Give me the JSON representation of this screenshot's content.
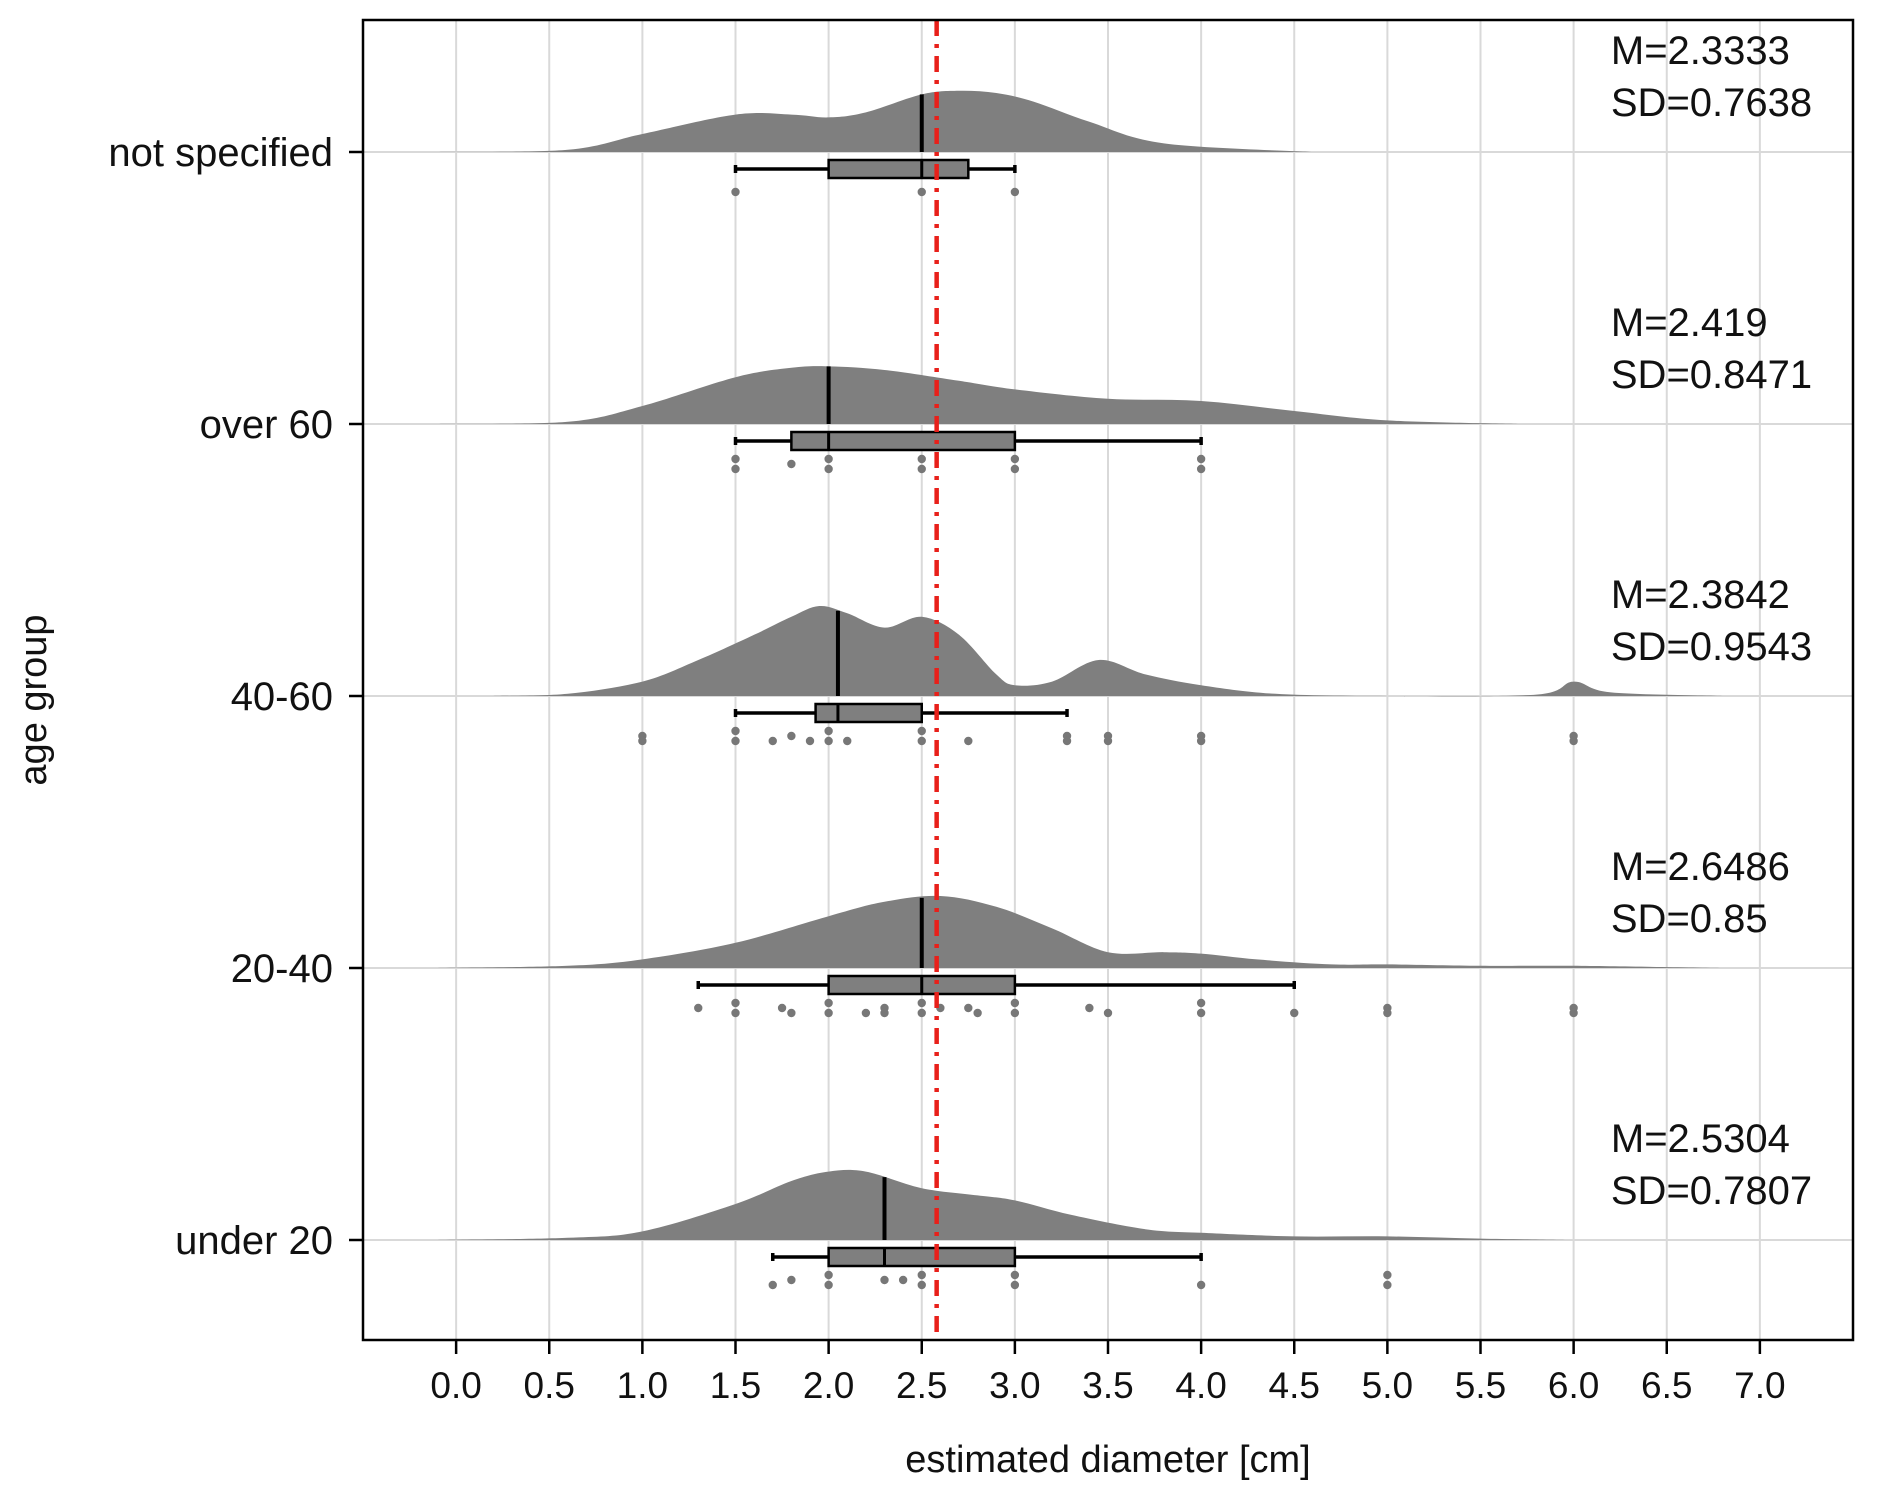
{
  "chart_data": {
    "type": "raincloud",
    "title": "",
    "xlabel": "estimated diameter [cm]",
    "ylabel": "age group",
    "xlim": [
      -0.5,
      7.5
    ],
    "xticks": [
      0.0,
      0.5,
      1.0,
      1.5,
      2.0,
      2.5,
      3.0,
      3.5,
      4.0,
      4.5,
      5.0,
      5.5,
      6.0,
      6.5,
      7.0
    ],
    "xtick_labels": [
      "0.0",
      "0.5",
      "1.0",
      "1.5",
      "2.0",
      "2.5",
      "3.0",
      "3.5",
      "4.0",
      "4.5",
      "5.0",
      "5.5",
      "6.0",
      "6.5",
      "7.0"
    ],
    "grid": true,
    "reference_line": {
      "x": 2.58,
      "style": "dash-dot",
      "color": "#e8201a"
    },
    "colors": {
      "cloud": "#7f7f7f",
      "box": "#7f7f7f",
      "points": "#777777",
      "line": "#000000",
      "grid": "#d9d9d9"
    },
    "groups": [
      {
        "name": "not specified",
        "stats": {
          "mean_label": "M=2.3333",
          "sd_label": "SD=0.7638"
        },
        "box": {
          "whisker_low": 1.5,
          "q1": 2.0,
          "median": 2.5,
          "q3": 2.75,
          "whisker_high": 3.0
        },
        "density": {
          "x": [
            -0.1,
            0.6,
            1.0,
            1.5,
            1.8,
            2.0,
            2.2,
            2.5,
            2.7,
            2.9,
            3.1,
            3.4,
            3.8,
            4.6
          ],
          "h": [
            0,
            0.03,
            0.25,
            0.52,
            0.52,
            0.48,
            0.55,
            0.8,
            0.85,
            0.82,
            0.7,
            0.42,
            0.12,
            0
          ]
        },
        "points": [
          [
            1.5,
            0
          ],
          [
            2.5,
            0
          ],
          [
            3.0,
            0
          ]
        ]
      },
      {
        "name": "over 60",
        "stats": {
          "mean_label": "M=2.419",
          "sd_label": "SD=0.8471"
        },
        "box": {
          "whisker_low": 1.5,
          "q1": 1.8,
          "median": 2.0,
          "q3": 3.0,
          "whisker_high": 4.0
        },
        "density": {
          "x": [
            -0.1,
            0.6,
            1.0,
            1.5,
            1.8,
            2.0,
            2.3,
            2.7,
            3.0,
            3.5,
            4.0,
            4.5,
            5.0,
            5.7
          ],
          "h": [
            0,
            0.03,
            0.25,
            0.65,
            0.78,
            0.8,
            0.75,
            0.6,
            0.48,
            0.35,
            0.32,
            0.18,
            0.05,
            0
          ]
        },
        "points": [
          [
            1.5,
            -1
          ],
          [
            1.5,
            1
          ],
          [
            1.8,
            0
          ],
          [
            2.0,
            -1
          ],
          [
            2.0,
            1
          ],
          [
            2.5,
            -1
          ],
          [
            2.5,
            1
          ],
          [
            3.0,
            -1
          ],
          [
            3.0,
            1
          ],
          [
            4.0,
            -1
          ],
          [
            4.0,
            1
          ]
        ]
      },
      {
        "name": "40-60",
        "stats": {
          "mean_label": "M=2.3842",
          "sd_label": "SD=0.9543"
        },
        "box": {
          "whisker_low": 1.5,
          "q1": 1.93,
          "median": 2.05,
          "q3": 2.5,
          "whisker_high": 3.28
        },
        "density": {
          "x": [
            0.2,
            0.6,
            1.0,
            1.3,
            1.6,
            1.8,
            1.95,
            2.1,
            2.3,
            2.5,
            2.7,
            2.9,
            3.0,
            3.2,
            3.45,
            3.7,
            4.0,
            4.4,
            5.0,
            5.8,
            6.0,
            6.2,
            6.8
          ],
          "h": [
            0,
            0.03,
            0.2,
            0.5,
            0.85,
            1.1,
            1.25,
            1.15,
            0.95,
            1.1,
            0.85,
            0.3,
            0.15,
            0.2,
            0.5,
            0.3,
            0.15,
            0.03,
            0,
            0.02,
            0.2,
            0.05,
            0
          ]
        },
        "points": [
          [
            1.0,
            0
          ],
          [
            1.0,
            1
          ],
          [
            1.5,
            -1
          ],
          [
            1.5,
            1
          ],
          [
            1.7,
            1
          ],
          [
            1.8,
            0
          ],
          [
            1.9,
            1
          ],
          [
            2.0,
            -1
          ],
          [
            2.0,
            1
          ],
          [
            2.1,
            1
          ],
          [
            2.5,
            -1
          ],
          [
            2.5,
            1
          ],
          [
            2.75,
            1
          ],
          [
            3.28,
            0
          ],
          [
            3.28,
            1
          ],
          [
            3.5,
            0
          ],
          [
            3.5,
            1
          ],
          [
            4.0,
            0
          ],
          [
            4.0,
            1
          ],
          [
            6.0,
            0
          ],
          [
            6.0,
            1
          ]
        ]
      },
      {
        "name": "20-40",
        "stats": {
          "mean_label": "M=2.6486",
          "sd_label": "SD=0.85"
        },
        "box": {
          "whisker_low": 1.3,
          "q1": 2.0,
          "median": 2.5,
          "q3": 3.0,
          "whisker_high": 4.5
        },
        "density": {
          "x": [
            -0.1,
            0.6,
            1.0,
            1.5,
            2.0,
            2.3,
            2.6,
            2.9,
            3.2,
            3.5,
            3.8,
            4.0,
            4.3,
            4.7,
            5.0,
            5.5,
            6.0,
            6.8
          ],
          "h": [
            0,
            0.03,
            0.12,
            0.35,
            0.72,
            0.92,
            1.0,
            0.85,
            0.55,
            0.22,
            0.22,
            0.2,
            0.12,
            0.05,
            0.05,
            0.03,
            0.03,
            0
          ]
        },
        "points": [
          [
            1.3,
            0
          ],
          [
            1.5,
            -1
          ],
          [
            1.5,
            1
          ],
          [
            1.75,
            0
          ],
          [
            1.8,
            1
          ],
          [
            2.0,
            -1
          ],
          [
            2.0,
            1
          ],
          [
            2.2,
            1
          ],
          [
            2.3,
            0
          ],
          [
            2.3,
            1
          ],
          [
            2.5,
            -1
          ],
          [
            2.5,
            1
          ],
          [
            2.6,
            0
          ],
          [
            2.75,
            0
          ],
          [
            2.8,
            1
          ],
          [
            3.0,
            -1
          ],
          [
            3.0,
            1
          ],
          [
            3.4,
            0
          ],
          [
            3.5,
            1
          ],
          [
            4.0,
            -1
          ],
          [
            4.0,
            1
          ],
          [
            4.5,
            1
          ],
          [
            5.0,
            0
          ],
          [
            5.0,
            1
          ],
          [
            6.0,
            0
          ],
          [
            6.0,
            1
          ]
        ]
      },
      {
        "name": "under 20",
        "stats": {
          "mean_label": "M=2.5304",
          "sd_label": "SD=0.7807"
        },
        "box": {
          "whisker_low": 1.7,
          "q1": 2.0,
          "median": 2.3,
          "q3": 3.0,
          "whisker_high": 4.0
        },
        "density": {
          "x": [
            -0.1,
            0.6,
            1.0,
            1.5,
            1.8,
            2.0,
            2.2,
            2.5,
            2.8,
            3.0,
            3.3,
            3.7,
            4.0,
            4.5,
            5.0,
            5.5,
            6.0
          ],
          "h": [
            0,
            0.03,
            0.12,
            0.5,
            0.82,
            0.95,
            0.95,
            0.72,
            0.62,
            0.55,
            0.35,
            0.15,
            0.1,
            0.05,
            0.05,
            0.02,
            0
          ]
        },
        "points": [
          [
            1.7,
            1
          ],
          [
            1.8,
            0
          ],
          [
            2.0,
            -1
          ],
          [
            2.0,
            1
          ],
          [
            2.3,
            0
          ],
          [
            2.4,
            0
          ],
          [
            2.5,
            -1
          ],
          [
            2.5,
            1
          ],
          [
            3.0,
            -1
          ],
          [
            3.0,
            1
          ],
          [
            4.0,
            1
          ],
          [
            5.0,
            -1
          ],
          [
            5.0,
            1
          ]
        ]
      }
    ]
  }
}
